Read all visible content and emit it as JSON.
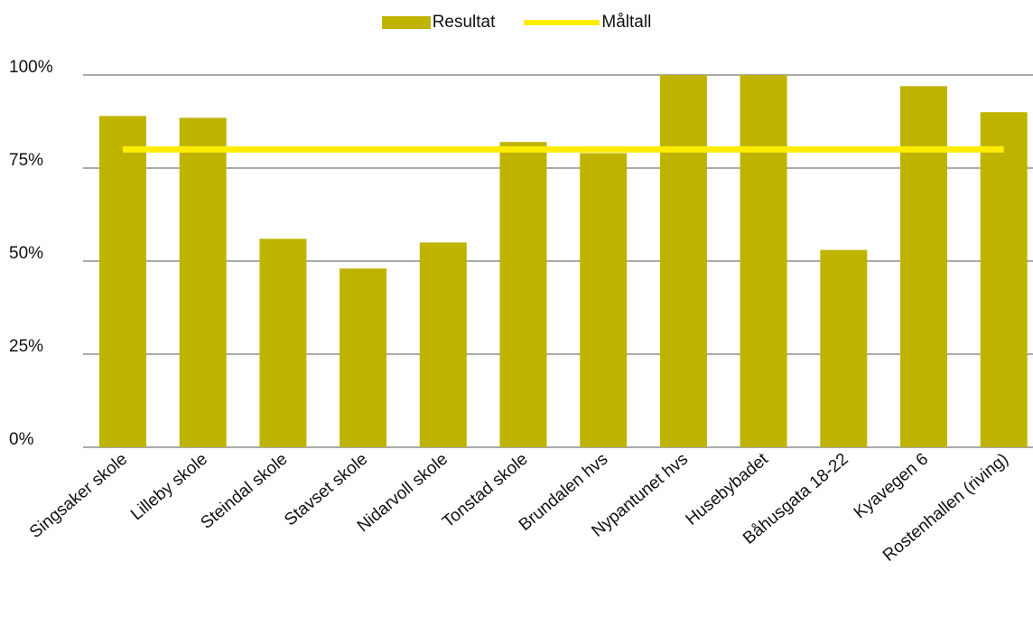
{
  "chart_data": {
    "type": "bar",
    "categories": [
      "Singsaker skole",
      "Lilleby skole",
      "Steindal skole",
      "Stavset skole",
      "Nidarvoll skole",
      "Tonstad skole",
      "Brundalen hvs",
      "Nypantunet hvs",
      "Husebybadet",
      "Båhusgata 18-22",
      "Kyavegen 6",
      "Rostenhallen (riving)"
    ],
    "series": [
      {
        "name": "Resultat",
        "type": "bar",
        "color": "#c0b300",
        "values": [
          89,
          88.5,
          56,
          48,
          55,
          82,
          79,
          100,
          100,
          53,
          97,
          90
        ]
      },
      {
        "name": "Måltall",
        "type": "line",
        "color": "#ffee00",
        "values": [
          80,
          80,
          80,
          80,
          80,
          80,
          80,
          80,
          80,
          80,
          80,
          80
        ]
      }
    ],
    "ylim": [
      0,
      100
    ],
    "y_ticks": [
      "0%",
      "25%",
      "50%",
      "75%",
      "100%"
    ],
    "y_tick_values": [
      0,
      25,
      50,
      75,
      100
    ],
    "grid": true,
    "legend_position": "top-center",
    "title": "",
    "xlabel": "",
    "ylabel": ""
  }
}
